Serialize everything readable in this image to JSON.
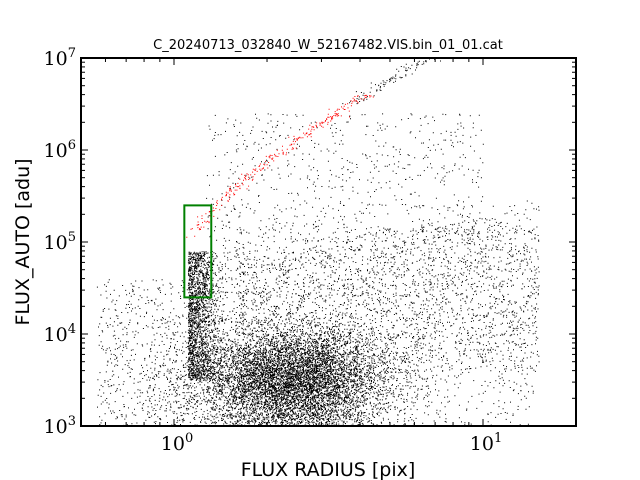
{
  "chart_data": {
    "type": "scatter",
    "title": "C_20240713_032840_W_52167482.VIS.bin_01_01.cat",
    "xlabel": "FLUX RADIUS [pix]",
    "ylabel": "FLUX_AUTO [adu]",
    "xscale": "log",
    "yscale": "log",
    "xlim": [
      0.5,
      20
    ],
    "ylim": [
      1000,
      10000000
    ],
    "xticks": [
      {
        "value": 1,
        "base": "10",
        "exp": "0"
      },
      {
        "value": 10,
        "base": "10",
        "exp": "1"
      }
    ],
    "yticks": [
      {
        "value": 1000,
        "base": "10",
        "exp": "3"
      },
      {
        "value": 10000,
        "base": "10",
        "exp": "4"
      },
      {
        "value": 100000,
        "base": "10",
        "exp": "5"
      },
      {
        "value": 1000000,
        "base": "10",
        "exp": "6"
      },
      {
        "value": 10000000,
        "base": "10",
        "exp": "7"
      }
    ],
    "grid": false,
    "colors": {
      "all_sources": "#000000",
      "selected_stars": "#ff0000",
      "selection_box": "#008000"
    },
    "selection_box": {
      "x": [
        1.08,
        1.32
      ],
      "y": [
        25000,
        250000
      ]
    },
    "point_groups": [
      {
        "role": "all-sources",
        "color": "#000000",
        "count": 14000,
        "description": "dense cloud of detected sources"
      },
      {
        "role": "selected-stars",
        "color": "#ff0000",
        "count": 260,
        "description": "stellar locus points"
      }
    ]
  }
}
